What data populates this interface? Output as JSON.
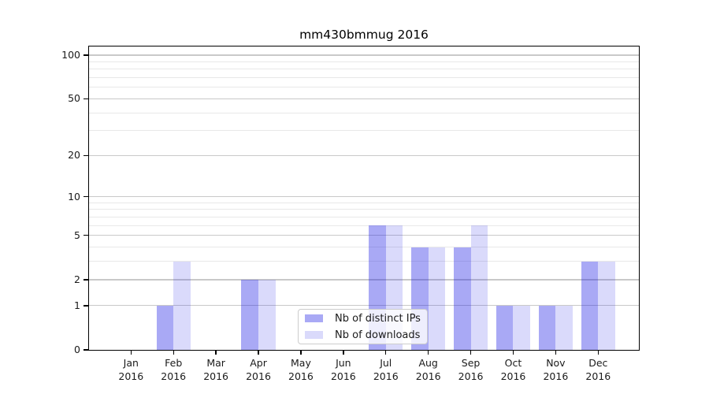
{
  "title": "mm430bmmug 2016",
  "chart_data": {
    "type": "bar",
    "title": "mm430bmmug 2016",
    "xlabel": "",
    "ylabel": "",
    "yscale": "log1p",
    "ylim": [
      0,
      115
    ],
    "grid": "horizontal-major-and-minor",
    "legend_position": "lower center",
    "yticks": [
      0,
      1,
      2,
      5,
      10,
      20,
      50,
      100
    ],
    "yticks_minor": [
      3,
      4,
      6,
      7,
      8,
      9,
      30,
      40,
      60,
      70,
      80,
      90
    ],
    "x_labels": [
      {
        "month": "Jan",
        "year": "2016"
      },
      {
        "month": "Feb",
        "year": "2016"
      },
      {
        "month": "Mar",
        "year": "2016"
      },
      {
        "month": "Apr",
        "year": "2016"
      },
      {
        "month": "May",
        "year": "2016"
      },
      {
        "month": "Jun",
        "year": "2016"
      },
      {
        "month": "Jul",
        "year": "2016"
      },
      {
        "month": "Aug",
        "year": "2016"
      },
      {
        "month": "Sep",
        "year": "2016"
      },
      {
        "month": "Oct",
        "year": "2016"
      },
      {
        "month": "Nov",
        "year": "2016"
      },
      {
        "month": "Dec",
        "year": "2016"
      }
    ],
    "series": [
      {
        "name": "Nb of distinct IPs",
        "color": "rgba(30,30,230,0.38)",
        "values": [
          0,
          1,
          0,
          2,
          0,
          0,
          6,
          4,
          4,
          1,
          1,
          3
        ]
      },
      {
        "name": "Nb of downloads",
        "color": "rgba(30,30,230,0.165)",
        "values": [
          0,
          3,
          0,
          2,
          0,
          0,
          6,
          4,
          6,
          1,
          1,
          3
        ]
      }
    ],
    "colors": {
      "grid_major": "#c9c9c9",
      "grid_minor": "#e8e8e8",
      "axis": "#000000",
      "text": "#1a1a1a",
      "plot_background": "#ffffff"
    }
  }
}
